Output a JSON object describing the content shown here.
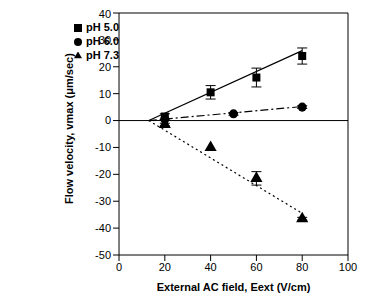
{
  "chart_data": {
    "type": "scatter",
    "x_label": "External AC field, Eext (V/cm)",
    "y_label": "Flow velocity, vmax (μm/sec)",
    "xlim": [
      0,
      100
    ],
    "xticks": [
      0,
      20,
      40,
      60,
      80,
      100
    ],
    "ylim": [
      -50,
      40
    ],
    "yticks": [
      -50,
      -40,
      -30,
      -20,
      -10,
      0,
      10,
      20,
      30,
      40
    ],
    "hline": 0,
    "grid": false,
    "legend": "upper left",
    "series": [
      {
        "name": "pH 5.0",
        "color": "#000000",
        "marker": "square",
        "line_style": "solid",
        "x": [
          20,
          40,
          60,
          80
        ],
        "values": [
          1.5,
          10.5,
          16,
          24
        ],
        "error": [
          1,
          2.5,
          3.5,
          3
        ],
        "fit": {
          "x": [
            13,
            80
          ],
          "values": [
            0,
            26
          ]
        }
      },
      {
        "name": "pH 6.0",
        "color": "#000000",
        "marker": "circle",
        "line_style": "dashdot",
        "x": [
          20,
          50,
          80
        ],
        "values": [
          0.5,
          2.5,
          5
        ],
        "error": [
          null,
          0.5,
          0.5
        ],
        "fit": {
          "x": [
            13,
            80
          ],
          "values": [
            0,
            5.2
          ]
        }
      },
      {
        "name": "pH 7.3",
        "color": "#000000",
        "marker": "triangle",
        "line_style": "dotted",
        "x": [
          20,
          40,
          60,
          80
        ],
        "values": [
          -1.5,
          -10,
          -21.5,
          -36.5
        ],
        "error": [
          0.5,
          null,
          2.5,
          0.5
        ],
        "fit": {
          "x": [
            13,
            80
          ],
          "values": [
            0,
            -34.5
          ]
        }
      }
    ]
  }
}
